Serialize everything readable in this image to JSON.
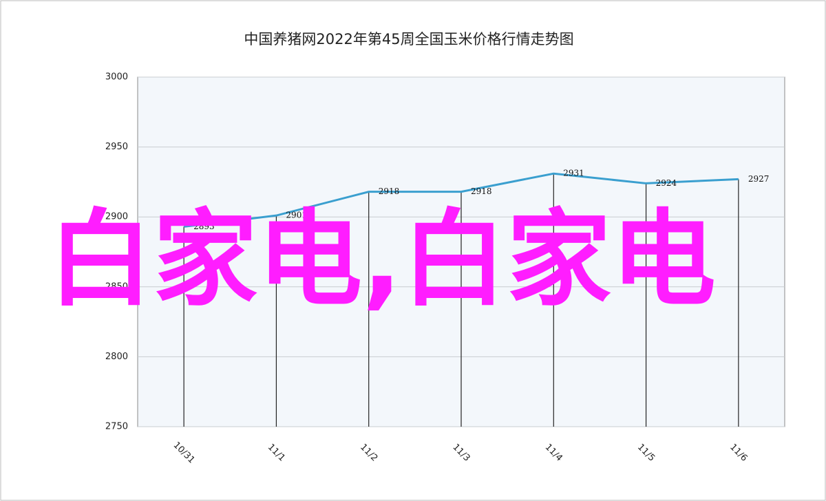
{
  "chart_data": {
    "type": "line",
    "title": "中国养猪网2022年第45周全国玉米价格行情走势图",
    "categories": [
      "10/31",
      "11/1",
      "11/2",
      "11/3",
      "11/4",
      "11/5",
      "11/6"
    ],
    "values": [
      2893,
      2901,
      2918,
      2918,
      2931,
      2924,
      2927
    ],
    "color": "#3a9fcf",
    "ylim": [
      2750,
      3000
    ],
    "yticks": [
      2750,
      2800,
      2850,
      2900,
      2950,
      3000
    ],
    "grid": true,
    "drop_lines": true
  },
  "overlay_text": "白家电,白家电"
}
